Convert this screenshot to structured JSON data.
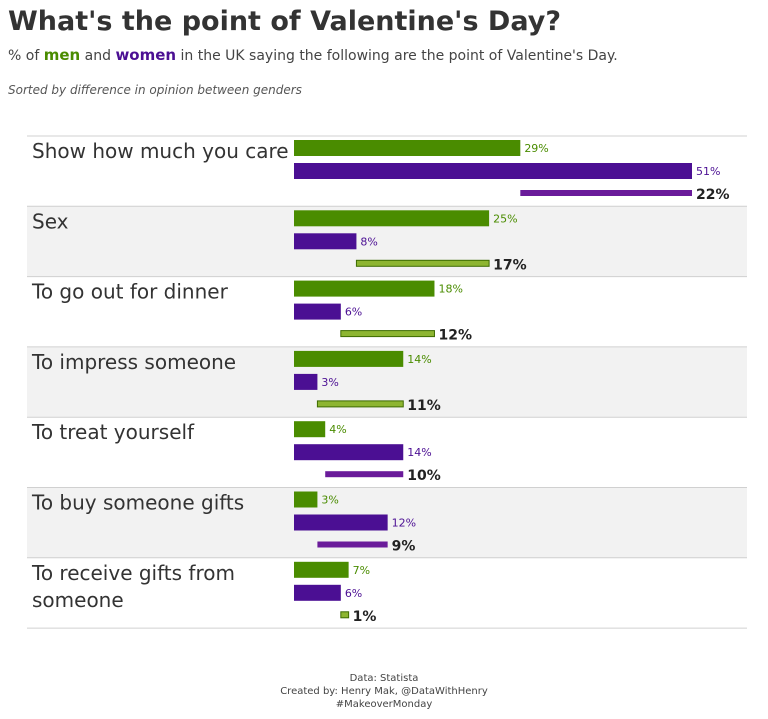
{
  "title": "What's the point of Valentine's Day?",
  "subtitle": {
    "prefix": "% of ",
    "men": "men",
    "and": " and ",
    "women": "women",
    "suffix": " in the UK saying the following are the point of Valentine's Day."
  },
  "sort_note": "Sorted by difference in opinion between genders",
  "footer": {
    "source": "Data: Statista",
    "credit": "Created by: Henry Mak, @DataWithHenry",
    "tag": "#MakeoverMonday"
  },
  "colors": {
    "men": "#4a8c00",
    "women": "#4b0f93",
    "diff_women_higher": "#6a1b9a",
    "diff_men_higher": "#8db531",
    "band": "#f2f2f2",
    "rule": "#d0d0d0"
  },
  "chart_data": {
    "type": "bar",
    "orientation": "horizontal",
    "categories": [
      "Show how much you care",
      "Sex",
      "To go out for dinner",
      "To impress someone",
      "To treat yourself",
      "To buy someone gifts",
      "To receive gifts from someone"
    ],
    "series": [
      {
        "name": "men",
        "values": [
          29,
          25,
          18,
          14,
          4,
          3,
          7
        ],
        "labels": [
          "29%",
          "25%",
          "18%",
          "14%",
          "4%",
          "3%",
          "7%"
        ]
      },
      {
        "name": "women",
        "values": [
          51,
          8,
          6,
          3,
          14,
          12,
          6
        ],
        "labels": [
          "51%",
          "8%",
          "6%",
          "3%",
          "14%",
          "12%",
          "6%"
        ]
      }
    ],
    "difference": {
      "values": [
        22,
        17,
        12,
        11,
        10,
        9,
        1
      ],
      "labels": [
        "22%",
        "17%",
        "12%",
        "11%",
        "10%",
        "9%",
        "1%"
      ],
      "higher": [
        "women",
        "men",
        "men",
        "men",
        "women",
        "women",
        "men"
      ]
    },
    "xlim": [
      0,
      51
    ]
  }
}
